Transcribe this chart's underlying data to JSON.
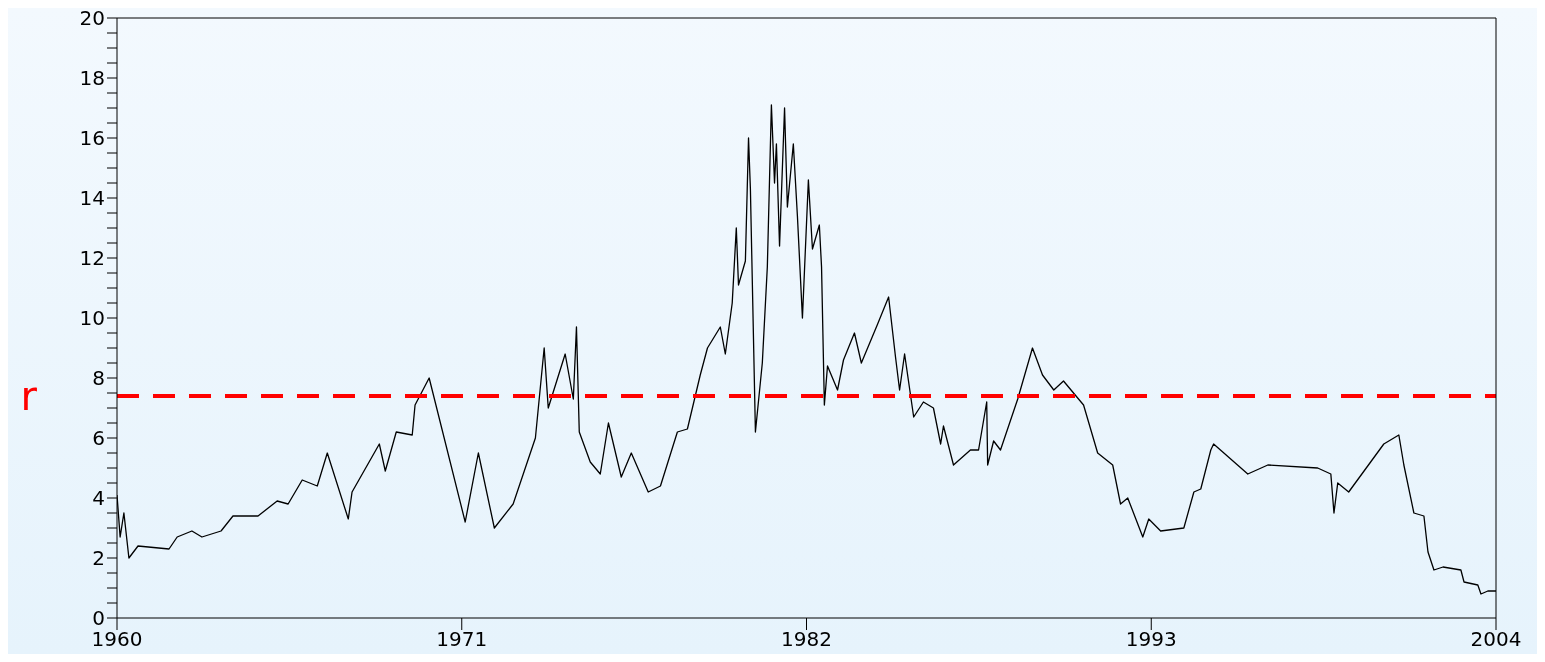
{
  "chart_data": {
    "type": "line",
    "xlim": [
      1960,
      2004
    ],
    "xticks": [
      1960,
      1971,
      1982,
      1993,
      2004
    ],
    "ylim": [
      0,
      20
    ],
    "yticks": [
      0,
      {
        "value": 0.5,
        "label": null
      },
      {
        "value": 1,
        "label": null
      },
      {
        "value": 1.5,
        "label": null
      },
      2,
      {
        "value": 2.5,
        "label": null
      },
      {
        "value": 3,
        "label": null
      },
      {
        "value": 3.5,
        "label": null
      },
      4,
      {
        "value": 4.5,
        "label": null
      },
      {
        "value": 5,
        "label": null
      },
      {
        "value": 5.5,
        "label": null
      },
      6,
      {
        "value": 6.5,
        "label": null
      },
      {
        "value": 7,
        "label": null
      },
      {
        "value": 7.5,
        "label": null
      },
      8,
      {
        "value": 8.5,
        "label": null
      },
      {
        "value": 9,
        "label": null
      },
      {
        "value": 9.5,
        "label": null
      },
      10,
      {
        "value": 10.5,
        "label": null
      },
      {
        "value": 11,
        "label": null
      },
      {
        "value": 11.5,
        "label": null
      },
      12,
      {
        "value": 12.5,
        "label": null
      },
      {
        "value": 13,
        "label": null
      },
      {
        "value": 13.5,
        "label": null
      },
      14,
      {
        "value": 14.5,
        "label": null
      },
      {
        "value": 15,
        "label": null
      },
      {
        "value": 15.5,
        "label": null
      },
      16,
      {
        "value": 16.5,
        "label": null
      },
      {
        "value": 17,
        "label": null
      },
      {
        "value": 17.5,
        "label": null
      },
      18,
      {
        "value": 18.5,
        "label": null
      },
      {
        "value": 19,
        "label": null
      },
      {
        "value": 19.5,
        "label": null
      },
      20
    ],
    "marker": "none",
    "line_style": "solid",
    "series": [
      {
        "color": "#000000",
        "x": [
          1960.0,
          1960.1,
          1960.22,
          1960.38,
          1960.67,
          1961.66,
          1961.92,
          1962.39,
          1962.71,
          1963.32,
          1963.7,
          1964.5,
          1965.11,
          1965.46,
          1965.91,
          1966.39,
          1966.71,
          1967.38,
          1967.5,
          1968.37,
          1968.56,
          1968.91,
          1969.42,
          1969.51,
          1969.96,
          1971.11,
          1971.53,
          1972.04,
          1972.64,
          1973.35,
          1973.63,
          1973.76,
          1974.3,
          1974.56,
          1974.66,
          1974.75,
          1975.1,
          1975.42,
          1975.68,
          1976.09,
          1976.41,
          1976.95,
          1977.34,
          1977.88,
          1978.2,
          1978.61,
          1978.84,
          1979.25,
          1979.41,
          1979.63,
          1979.76,
          1979.83,
          1980.05,
          1980.15,
          1980.21,
          1980.37,
          1980.59,
          1980.75,
          1980.88,
          1980.98,
          1981.04,
          1981.14,
          1981.3,
          1981.39,
          1981.58,
          1981.71,
          1981.87,
          1982.06,
          1982.19,
          1982.41,
          1982.48,
          1982.57,
          1982.67,
          1982.99,
          1983.18,
          1983.53,
          1983.75,
          1984.27,
          1984.62,
          1984.84,
          1984.97,
          1985.13,
          1985.42,
          1985.73,
          1986.05,
          1986.28,
          1986.37,
          1986.69,
          1987.23,
          1987.49,
          1987.75,
          1987.78,
          1987.97,
          1988.19,
          1988.74,
          1989.21,
          1989.53,
          1989.89,
          1990.2,
          1990.84,
          1991.29,
          1991.77,
          1992.02,
          1992.25,
          1992.73,
          1992.92,
          1993.3,
          1994.04,
          1994.36,
          1994.58,
          1994.9,
          1994.99,
          1996.08,
          1996.72,
          1998.31,
          1998.73,
          1998.83,
          1998.95,
          1999.3,
          2000.0,
          2000.42,
          2000.9,
          2001.06,
          2001.38,
          2001.7,
          2001.83,
          2002.02,
          2002.31,
          2002.88,
          2002.98,
          2003.42,
          2003.52,
          2003.74,
          2004.0
        ],
        "values": [
          4.1,
          2.7,
          3.5,
          2.0,
          2.4,
          2.3,
          2.7,
          2.9,
          2.7,
          2.9,
          3.4,
          3.4,
          3.9,
          3.8,
          4.6,
          4.4,
          5.5,
          3.3,
          4.2,
          5.8,
          4.9,
          6.2,
          6.1,
          7.1,
          8.0,
          3.2,
          5.5,
          3.0,
          3.8,
          6.0,
          9.0,
          7.0,
          8.8,
          7.3,
          9.7,
          6.2,
          5.2,
          4.8,
          6.5,
          4.7,
          5.5,
          4.2,
          4.4,
          6.2,
          6.3,
          8.1,
          9.0,
          9.7,
          8.8,
          10.5,
          13.0,
          11.1,
          11.9,
          16.0,
          14.3,
          6.2,
          8.5,
          11.7,
          17.1,
          14.5,
          15.8,
          12.4,
          17.0,
          13.7,
          15.8,
          13.4,
          10.0,
          14.6,
          12.3,
          13.1,
          11.7,
          7.1,
          8.4,
          7.6,
          8.6,
          9.5,
          8.5,
          9.8,
          10.7,
          8.7,
          7.6,
          8.8,
          6.7,
          7.2,
          7.0,
          5.8,
          6.4,
          5.1,
          5.6,
          5.6,
          7.2,
          5.1,
          5.9,
          5.6,
          7.3,
          9.0,
          8.1,
          7.6,
          7.9,
          7.1,
          5.5,
          5.1,
          3.8,
          4.0,
          2.7,
          3.3,
          2.9,
          3.0,
          4.2,
          4.3,
          5.6,
          5.8,
          4.8,
          5.1,
          5.0,
          4.8,
          3.5,
          4.5,
          4.2,
          5.2,
          5.8,
          6.1,
          5.1,
          3.5,
          3.4,
          2.2,
          1.6,
          1.7,
          1.6,
          1.2,
          1.1,
          0.8,
          0.9,
          0.9
        ]
      }
    ],
    "ref_lines": [
      {
        "axis": "y",
        "value": 7.4,
        "label": "r",
        "color": "#ff0000",
        "line_style": "dashed"
      }
    ]
  }
}
